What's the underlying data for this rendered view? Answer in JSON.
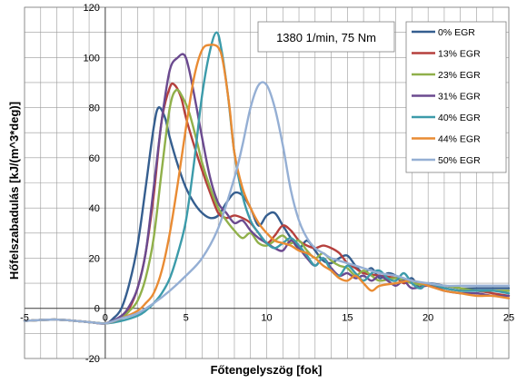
{
  "chart_data": {
    "type": "line",
    "title": "",
    "xlabel": "Főtengelyszög [fok]",
    "ylabel": "Hőfelszabadulás [kJ/(m^3*deg)]",
    "xlim": [
      -5,
      25
    ],
    "ylim": [
      -20,
      120
    ],
    "x_ticks": [
      -5,
      0,
      5,
      10,
      15,
      20,
      25
    ],
    "y_ticks": [
      -20,
      0,
      20,
      40,
      60,
      80,
      100,
      120
    ],
    "grid": true,
    "legend_position": "top-right",
    "annotation": "1380 1/min, 75 Nm",
    "series": [
      {
        "name": "0% EGR",
        "color": "#355E8F",
        "points": [
          [
            -5,
            -5
          ],
          [
            -3,
            -4.5
          ],
          [
            -1,
            -5.5
          ],
          [
            0,
            -6
          ],
          [
            0.5,
            -4
          ],
          [
            1,
            0
          ],
          [
            1.5,
            10
          ],
          [
            2,
            25
          ],
          [
            2.5,
            48
          ],
          [
            3,
            72
          ],
          [
            3.3,
            80
          ],
          [
            3.7,
            76
          ],
          [
            4,
            68
          ],
          [
            4.5,
            57
          ],
          [
            5,
            48
          ],
          [
            5.5,
            42
          ],
          [
            6,
            38
          ],
          [
            6.5,
            36
          ],
          [
            7,
            37
          ],
          [
            7.5,
            42
          ],
          [
            8,
            46
          ],
          [
            8.5,
            45
          ],
          [
            9,
            40
          ],
          [
            9.5,
            33
          ],
          [
            10,
            37
          ],
          [
            10.5,
            38
          ],
          [
            11,
            33
          ],
          [
            11.5,
            28
          ],
          [
            12,
            24
          ],
          [
            12.5,
            27
          ],
          [
            13,
            23
          ],
          [
            13.5,
            19
          ],
          [
            14,
            18
          ],
          [
            14.5,
            20
          ],
          [
            15,
            21
          ],
          [
            15.5,
            17
          ],
          [
            16,
            14
          ],
          [
            16.5,
            16
          ],
          [
            17,
            12
          ],
          [
            17.5,
            14
          ],
          [
            18,
            13
          ],
          [
            18.5,
            10
          ],
          [
            19,
            12
          ],
          [
            19.5,
            8
          ],
          [
            20,
            10
          ],
          [
            21,
            9
          ],
          [
            22,
            8
          ],
          [
            23,
            8
          ],
          [
            24,
            8
          ],
          [
            25,
            8
          ]
        ]
      },
      {
        "name": "13% EGR",
        "color": "#B5403D",
        "points": [
          [
            -5,
            -5
          ],
          [
            -3,
            -4.5
          ],
          [
            -1,
            -5.5
          ],
          [
            0,
            -6
          ],
          [
            1,
            -4
          ],
          [
            1.5,
            0
          ],
          [
            2,
            8
          ],
          [
            2.5,
            22
          ],
          [
            3,
            45
          ],
          [
            3.5,
            75
          ],
          [
            4,
            88
          ],
          [
            4.3,
            89
          ],
          [
            4.7,
            84
          ],
          [
            5,
            76
          ],
          [
            5.5,
            65
          ],
          [
            6,
            55
          ],
          [
            6.5,
            46
          ],
          [
            7,
            38
          ],
          [
            7.5,
            36
          ],
          [
            8,
            37
          ],
          [
            8.5,
            36
          ],
          [
            9,
            34
          ],
          [
            9.5,
            30
          ],
          [
            10,
            26
          ],
          [
            10.5,
            29
          ],
          [
            11,
            33
          ],
          [
            11.5,
            31
          ],
          [
            12,
            27
          ],
          [
            12.5,
            25
          ],
          [
            13,
            24
          ],
          [
            13.5,
            25
          ],
          [
            14,
            24
          ],
          [
            14.5,
            22
          ],
          [
            15,
            18
          ],
          [
            15.5,
            16
          ],
          [
            16,
            14
          ],
          [
            17,
            13
          ],
          [
            18,
            12
          ],
          [
            18.5,
            10
          ],
          [
            19,
            11
          ],
          [
            20,
            9
          ],
          [
            21,
            8
          ],
          [
            22,
            7
          ],
          [
            23,
            7
          ],
          [
            24,
            6
          ],
          [
            25,
            5
          ]
        ]
      },
      {
        "name": "23% EGR",
        "color": "#90B04A",
        "points": [
          [
            -5,
            -5
          ],
          [
            -3,
            -4.5
          ],
          [
            -1,
            -5.5
          ],
          [
            0,
            -6
          ],
          [
            1,
            -4
          ],
          [
            1.5,
            -1
          ],
          [
            2,
            3
          ],
          [
            2.5,
            12
          ],
          [
            3,
            28
          ],
          [
            3.5,
            55
          ],
          [
            4,
            80
          ],
          [
            4.4,
            87
          ],
          [
            4.8,
            84
          ],
          [
            5.2,
            78
          ],
          [
            5.7,
            66
          ],
          [
            6,
            58
          ],
          [
            6.5,
            48
          ],
          [
            7,
            40
          ],
          [
            7.5,
            35
          ],
          [
            8,
            31
          ],
          [
            8.5,
            28
          ],
          [
            9,
            30
          ],
          [
            9.5,
            26
          ],
          [
            10,
            25
          ],
          [
            10.5,
            27
          ],
          [
            11,
            29
          ],
          [
            11.5,
            26
          ],
          [
            12,
            27
          ],
          [
            12.5,
            23
          ],
          [
            13,
            20
          ],
          [
            13.5,
            22
          ],
          [
            14,
            19
          ],
          [
            14.5,
            17
          ],
          [
            15,
            16
          ],
          [
            15.5,
            13
          ],
          [
            16,
            15
          ],
          [
            16.5,
            13
          ],
          [
            17,
            11
          ],
          [
            18,
            12
          ],
          [
            19,
            10
          ],
          [
            20,
            9
          ],
          [
            21,
            9
          ],
          [
            22,
            8
          ],
          [
            23,
            7
          ],
          [
            24,
            7
          ],
          [
            25,
            7
          ]
        ]
      },
      {
        "name": "31% EGR",
        "color": "#6B4A8F",
        "points": [
          [
            -5,
            -5
          ],
          [
            -3,
            -4.5
          ],
          [
            -1,
            -5.5
          ],
          [
            0,
            -6
          ],
          [
            1,
            -3
          ],
          [
            1.5,
            1
          ],
          [
            2,
            8
          ],
          [
            2.5,
            22
          ],
          [
            3,
            48
          ],
          [
            3.5,
            75
          ],
          [
            4,
            95
          ],
          [
            4.5,
            100
          ],
          [
            4.9,
            101
          ],
          [
            5.2,
            95
          ],
          [
            5.6,
            82
          ],
          [
            6,
            68
          ],
          [
            6.5,
            52
          ],
          [
            7,
            42
          ],
          [
            7.5,
            38
          ],
          [
            8,
            34
          ],
          [
            8.5,
            35
          ],
          [
            9,
            31
          ],
          [
            9.5,
            28
          ],
          [
            10,
            26
          ],
          [
            10.5,
            24
          ],
          [
            11,
            23
          ],
          [
            11.5,
            27
          ],
          [
            12,
            24
          ],
          [
            12.5,
            20
          ],
          [
            13,
            17
          ],
          [
            13.5,
            20
          ],
          [
            14,
            16
          ],
          [
            14.5,
            13
          ],
          [
            15,
            14
          ],
          [
            15.5,
            12
          ],
          [
            16,
            13
          ],
          [
            16.5,
            11
          ],
          [
            17,
            13
          ],
          [
            17.5,
            11
          ],
          [
            18,
            9
          ],
          [
            18.5,
            11
          ],
          [
            19,
            8
          ],
          [
            20,
            9
          ],
          [
            21,
            7
          ],
          [
            22,
            6
          ],
          [
            23,
            6
          ],
          [
            24,
            5
          ],
          [
            25,
            5
          ]
        ]
      },
      {
        "name": "40% EGR",
        "color": "#3C9BAA",
        "points": [
          [
            -5,
            -5
          ],
          [
            -3,
            -4.5
          ],
          [
            -1,
            -5.5
          ],
          [
            0,
            -6
          ],
          [
            1,
            -5
          ],
          [
            2,
            -3
          ],
          [
            2.5,
            -1
          ],
          [
            3,
            2
          ],
          [
            3.5,
            6
          ],
          [
            4,
            12
          ],
          [
            4.5,
            22
          ],
          [
            5,
            35
          ],
          [
            5.5,
            58
          ],
          [
            6,
            85
          ],
          [
            6.5,
            103
          ],
          [
            6.9,
            110
          ],
          [
            7.2,
            103
          ],
          [
            7.6,
            85
          ],
          [
            8,
            62
          ],
          [
            8.5,
            45
          ],
          [
            9,
            35
          ],
          [
            9.5,
            30
          ],
          [
            10,
            26
          ],
          [
            10.5,
            24
          ],
          [
            11,
            26
          ],
          [
            11.5,
            28
          ],
          [
            12,
            25
          ],
          [
            12.5,
            21
          ],
          [
            13,
            17
          ],
          [
            13.5,
            20
          ],
          [
            14,
            15
          ],
          [
            14.5,
            13
          ],
          [
            15,
            17
          ],
          [
            15.5,
            14
          ],
          [
            16,
            11
          ],
          [
            16.5,
            14
          ],
          [
            17,
            15
          ],
          [
            17.5,
            12
          ],
          [
            18,
            11
          ],
          [
            18.5,
            14
          ],
          [
            19,
            10
          ],
          [
            19.5,
            8
          ],
          [
            20,
            10
          ],
          [
            21,
            8
          ],
          [
            22,
            7
          ],
          [
            23,
            7
          ],
          [
            24,
            7
          ],
          [
            25,
            6
          ]
        ]
      },
      {
        "name": "44% EGR",
        "color": "#E98B33",
        "points": [
          [
            -5,
            -5
          ],
          [
            -3,
            -4.5
          ],
          [
            -1,
            -5.5
          ],
          [
            0,
            -6
          ],
          [
            1,
            -4
          ],
          [
            2,
            -1
          ],
          [
            2.5,
            2
          ],
          [
            3,
            6
          ],
          [
            3.5,
            15
          ],
          [
            4,
            30
          ],
          [
            4.5,
            50
          ],
          [
            5,
            72
          ],
          [
            5.5,
            92
          ],
          [
            6,
            103
          ],
          [
            6.5,
            105
          ],
          [
            7,
            104
          ],
          [
            7.3,
            98
          ],
          [
            7.7,
            80
          ],
          [
            8,
            62
          ],
          [
            8.5,
            48
          ],
          [
            9,
            40
          ],
          [
            9.5,
            34
          ],
          [
            10,
            30
          ],
          [
            10.5,
            27
          ],
          [
            11,
            26
          ],
          [
            11.5,
            25
          ],
          [
            12,
            23
          ],
          [
            12.5,
            22
          ],
          [
            13,
            20
          ],
          [
            13.5,
            17
          ],
          [
            14,
            15
          ],
          [
            14.5,
            12
          ],
          [
            15,
            11
          ],
          [
            15.5,
            13
          ],
          [
            16,
            10
          ],
          [
            16.5,
            7
          ],
          [
            17,
            9
          ],
          [
            18,
            10
          ],
          [
            19,
            11
          ],
          [
            20,
            9
          ],
          [
            21,
            7
          ],
          [
            22,
            6
          ],
          [
            23,
            5
          ],
          [
            24,
            5
          ],
          [
            25,
            4
          ]
        ]
      },
      {
        "name": "50% EGR",
        "color": "#95AFD4",
        "points": [
          [
            -5,
            -5
          ],
          [
            -3,
            -4.5
          ],
          [
            -1,
            -5.5
          ],
          [
            0,
            -6
          ],
          [
            1,
            -4
          ],
          [
            2,
            -2
          ],
          [
            3,
            2
          ],
          [
            4,
            7
          ],
          [
            5,
            13
          ],
          [
            6,
            20
          ],
          [
            7,
            32
          ],
          [
            8,
            52
          ],
          [
            8.5,
            65
          ],
          [
            9,
            80
          ],
          [
            9.5,
            89
          ],
          [
            10,
            89
          ],
          [
            10.5,
            80
          ],
          [
            11,
            65
          ],
          [
            11.5,
            47
          ],
          [
            12,
            35
          ],
          [
            12.5,
            28
          ],
          [
            13,
            24
          ],
          [
            13.5,
            22
          ],
          [
            14,
            20
          ],
          [
            15,
            18
          ],
          [
            16,
            16
          ],
          [
            17,
            14
          ],
          [
            18,
            13
          ],
          [
            19,
            11
          ],
          [
            20,
            10
          ],
          [
            21,
            9
          ],
          [
            22,
            9
          ],
          [
            23,
            9
          ],
          [
            24,
            9
          ],
          [
            25,
            9
          ]
        ]
      }
    ]
  }
}
